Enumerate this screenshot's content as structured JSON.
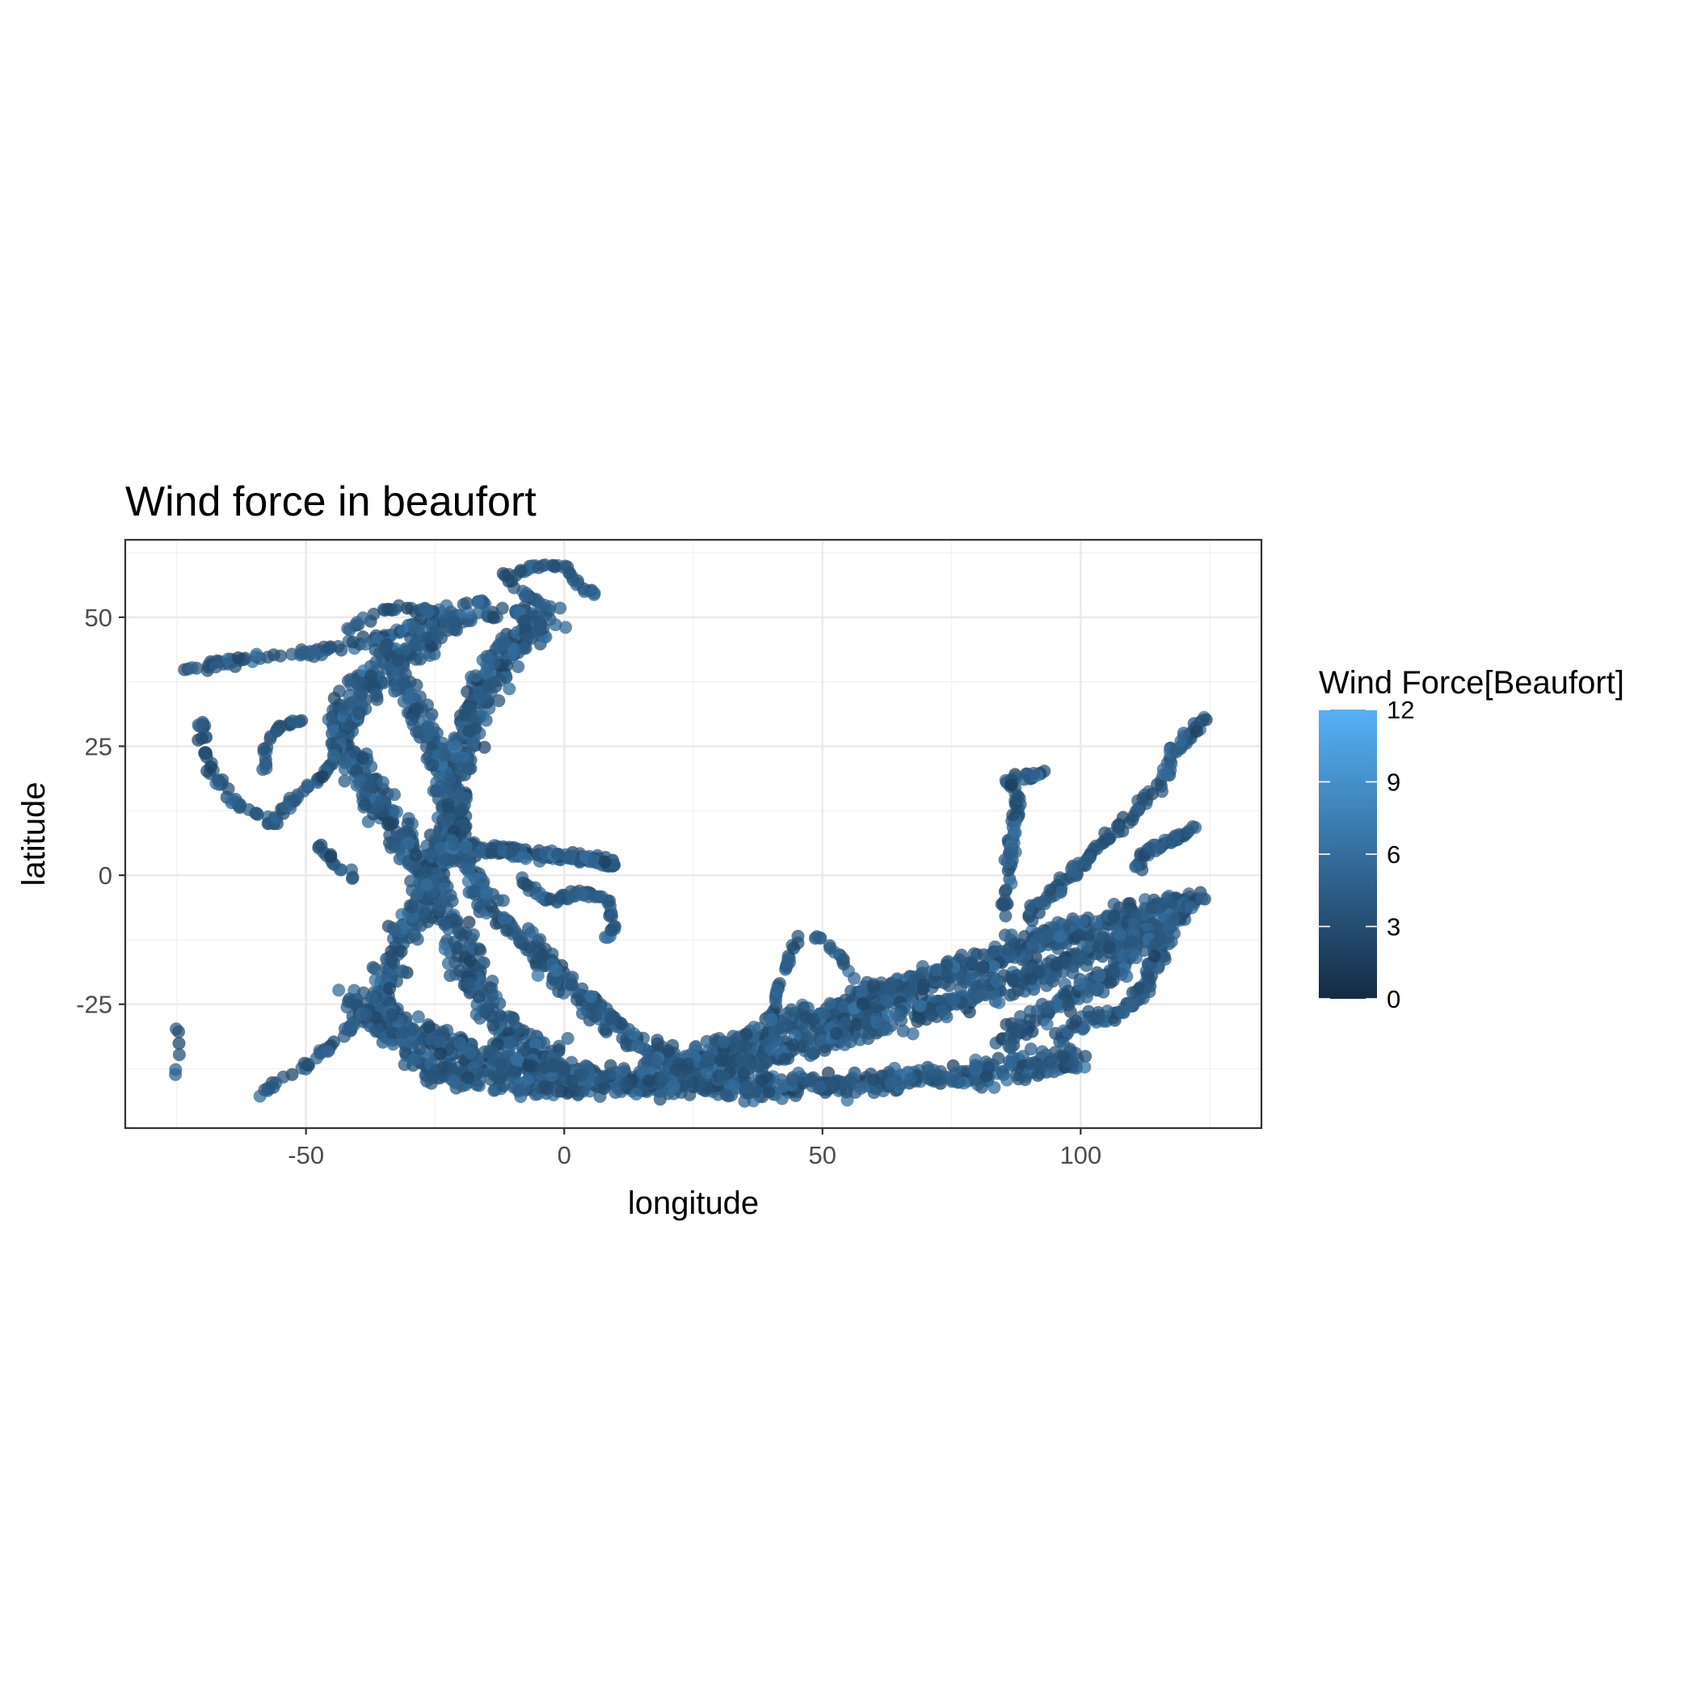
{
  "chart_data": {
    "type": "scatter",
    "title": "Wind force in beaufort",
    "xlabel": "longitude",
    "ylabel": "latitude",
    "xlim": [
      -85,
      135
    ],
    "ylim": [
      -49,
      65
    ],
    "x_ticks": [
      -50,
      0,
      50,
      100
    ],
    "x_tick_labels": [
      "-50",
      "0",
      "50",
      "100"
    ],
    "y_ticks": [
      -25,
      0,
      25,
      50
    ],
    "y_tick_labels": [
      "-25",
      "0",
      "25",
      "50"
    ],
    "grid": true,
    "color_scale": {
      "title": "Wind Force[Beaufort]",
      "min": 0,
      "max": 12,
      "ticks": [
        0,
        3,
        6,
        9,
        12
      ],
      "tick_labels": [
        "0",
        "3",
        "6",
        "9",
        "12"
      ],
      "low_color": "#132B43",
      "high_color": "#56B1F7"
    },
    "point_alpha": 0.75,
    "routes": [
      {
        "points": [
          [
            -73,
            40
          ],
          [
            -60,
            42
          ],
          [
            -50,
            43
          ],
          [
            -40,
            45
          ],
          [
            -30,
            48
          ],
          [
            -20,
            50
          ],
          [
            -10,
            51
          ],
          [
            0,
            51
          ]
        ],
        "n": 120,
        "jitter": 1.5
      },
      {
        "points": [
          [
            -3,
            51
          ],
          [
            -8,
            55
          ],
          [
            -12,
            58
          ],
          [
            -5,
            60
          ],
          [
            0,
            60
          ],
          [
            2,
            57
          ],
          [
            6,
            54
          ]
        ],
        "n": 50,
        "jitter": 0.8
      },
      {
        "points": [
          [
            -3,
            50
          ],
          [
            -10,
            45
          ],
          [
            -15,
            38
          ],
          [
            -18,
            30
          ],
          [
            -20,
            20
          ],
          [
            -22,
            10
          ],
          [
            -25,
            0
          ],
          [
            -30,
            -10
          ],
          [
            -35,
            -20
          ],
          [
            -35,
            -30
          ],
          [
            -25,
            -38
          ],
          [
            -10,
            -40
          ],
          [
            5,
            -40
          ],
          [
            20,
            -40
          ]
        ],
        "n": 700,
        "jitter": 4.5
      },
      {
        "points": [
          [
            -20,
            50
          ],
          [
            -28,
            45
          ],
          [
            -38,
            38
          ],
          [
            -44,
            30
          ],
          [
            -40,
            20
          ],
          [
            -33,
            10
          ],
          [
            -27,
            0
          ],
          [
            -22,
            -10
          ],
          [
            -18,
            -20
          ],
          [
            -12,
            -30
          ],
          [
            0,
            -36
          ]
        ],
        "n": 550,
        "jitter": 4.5
      },
      {
        "points": [
          [
            -35,
            45
          ],
          [
            -30,
            35
          ],
          [
            -25,
            25
          ],
          [
            -22,
            15
          ],
          [
            -20,
            5
          ],
          [
            -15,
            -5
          ],
          [
            -5,
            -15
          ],
          [
            5,
            -25
          ],
          [
            15,
            -33
          ],
          [
            25,
            -38
          ],
          [
            35,
            -40
          ]
        ],
        "n": 450,
        "jitter": 3.5
      },
      {
        "points": [
          [
            -25,
            6
          ],
          [
            -15,
            5
          ],
          [
            -5,
            4
          ],
          [
            5,
            3
          ],
          [
            10,
            2
          ]
        ],
        "n": 160,
        "jitter": 1.5
      },
      {
        "points": [
          [
            -10,
            0
          ],
          [
            -3,
            -5
          ],
          [
            3,
            -3
          ],
          [
            8,
            -5
          ],
          [
            10,
            -10
          ],
          [
            8,
            -13
          ]
        ],
        "n": 60,
        "jitter": 1.2
      },
      {
        "points": [
          [
            -42,
            -24
          ],
          [
            -30,
            -30
          ],
          [
            -15,
            -35
          ],
          [
            0,
            -38
          ],
          [
            15,
            -40
          ],
          [
            30,
            -41
          ],
          [
            45,
            -41
          ],
          [
            60,
            -40
          ],
          [
            75,
            -39
          ],
          [
            90,
            -37
          ],
          [
            100,
            -36
          ]
        ],
        "n": 650,
        "jitter": 3.5
      },
      {
        "points": [
          [
            20,
            -38
          ],
          [
            35,
            -32
          ],
          [
            50,
            -27
          ],
          [
            65,
            -22
          ],
          [
            80,
            -17
          ],
          [
            95,
            -12
          ],
          [
            110,
            -8
          ],
          [
            122,
            -5
          ]
        ],
        "n": 600,
        "jitter": 3.8
      },
      {
        "points": [
          [
            30,
            -38
          ],
          [
            45,
            -33
          ],
          [
            60,
            -29
          ],
          [
            75,
            -25
          ],
          [
            90,
            -20
          ],
          [
            105,
            -14
          ],
          [
            115,
            -10
          ]
        ],
        "n": 450,
        "jitter": 3.5
      },
      {
        "points": [
          [
            40,
            -28
          ],
          [
            42,
            -20
          ],
          [
            45,
            -12
          ],
          [
            50,
            -12
          ],
          [
            55,
            -18
          ],
          [
            58,
            -24
          ]
        ],
        "n": 40,
        "jitter": 0.8
      },
      {
        "points": [
          [
            85,
            -8
          ],
          [
            86,
            0
          ],
          [
            87,
            8
          ],
          [
            88,
            15
          ],
          [
            86,
            19
          ],
          [
            90,
            19
          ],
          [
            93,
            20
          ]
        ],
        "n": 80,
        "jitter": 1.2
      },
      {
        "points": [
          [
            90,
            -8
          ],
          [
            95,
            -3
          ],
          [
            100,
            2
          ],
          [
            104,
            6
          ],
          [
            108,
            10
          ],
          [
            112,
            14
          ],
          [
            116,
            18
          ],
          [
            118,
            24
          ],
          [
            122,
            28
          ],
          [
            124,
            31
          ]
        ],
        "n": 120,
        "jitter": 1.5
      },
      {
        "points": [
          [
            110,
            0
          ],
          [
            113,
            5
          ],
          [
            118,
            7
          ],
          [
            122,
            9
          ]
        ],
        "n": 40,
        "jitter": 1.0
      },
      {
        "points": [
          [
            96,
            -32
          ],
          [
            103,
            -28
          ],
          [
            110,
            -25
          ],
          [
            114,
            -18
          ],
          [
            116,
            -12
          ],
          [
            120,
            -7
          ],
          [
            123,
            -4
          ]
        ],
        "n": 120,
        "jitter": 2.5
      },
      {
        "points": [
          [
            85,
            -32
          ],
          [
            95,
            -25
          ],
          [
            105,
            -20
          ],
          [
            112,
            -13
          ]
        ],
        "n": 120,
        "jitter": 3.0
      },
      {
        "points": [
          [
            -70,
            31
          ],
          [
            -70,
            25
          ],
          [
            -68,
            20
          ],
          [
            -65,
            15
          ],
          [
            -60,
            12
          ],
          [
            -55,
            10
          ]
        ],
        "n": 45,
        "jitter": 1.2
      },
      {
        "points": [
          [
            -57,
            10
          ],
          [
            -52,
            15
          ],
          [
            -46,
            20
          ],
          [
            -43,
            27
          ],
          [
            -40,
            31
          ],
          [
            -36,
            35
          ]
        ],
        "n": 60,
        "jitter": 1.2
      },
      {
        "points": [
          [
            -58,
            20
          ],
          [
            -58,
            25
          ],
          [
            -55,
            29
          ],
          [
            -50,
            30
          ]
        ],
        "n": 25,
        "jitter": 0.8
      },
      {
        "points": [
          [
            -60,
            -43
          ],
          [
            -55,
            -40
          ],
          [
            -50,
            -37
          ],
          [
            -45,
            -33
          ],
          [
            -40,
            -28
          ],
          [
            -37,
            -26
          ]
        ],
        "n": 40,
        "jitter": 1.0
      },
      {
        "points": [
          [
            -75,
            -30
          ],
          [
            -74,
            -33
          ],
          [
            -76,
            -42
          ]
        ],
        "n": 6,
        "jitter": 0.6
      },
      {
        "points": [
          [
            -50,
            8
          ],
          [
            -45,
            3
          ],
          [
            -40,
            -1
          ]
        ],
        "n": 15,
        "jitter": 1.0
      },
      {
        "points": [
          [
            -42,
            48
          ],
          [
            -38,
            50
          ],
          [
            -33,
            52
          ],
          [
            -25,
            51
          ],
          [
            -15,
            53
          ]
        ],
        "n": 40,
        "jitter": 1.0
      }
    ]
  }
}
